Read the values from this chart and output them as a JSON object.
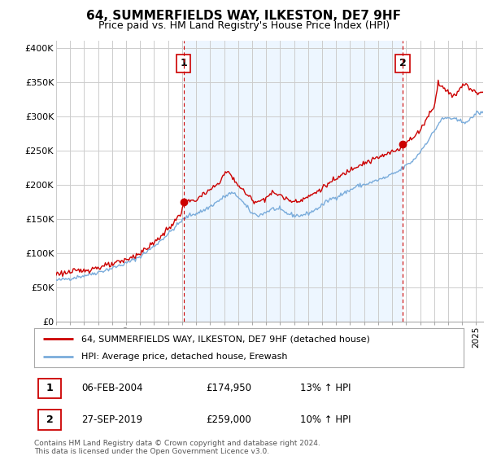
{
  "title": "64, SUMMERFIELDS WAY, ILKESTON, DE7 9HF",
  "subtitle": "Price paid vs. HM Land Registry's House Price Index (HPI)",
  "ylabel_ticks": [
    0,
    50000,
    100000,
    150000,
    200000,
    250000,
    300000,
    350000,
    400000
  ],
  "ylabel_labels": [
    "£0",
    "£50K",
    "£100K",
    "£150K",
    "£200K",
    "£250K",
    "£300K",
    "£350K",
    "£400K"
  ],
  "xlim_start": 1995.0,
  "xlim_end": 2025.5,
  "ylim": [
    0,
    410000
  ],
  "legend_line1": "64, SUMMERFIELDS WAY, ILKESTON, DE7 9HF (detached house)",
  "legend_line2": "HPI: Average price, detached house, Erewash",
  "sale1_label": "1",
  "sale1_date": "06-FEB-2004",
  "sale1_price": "£174,950",
  "sale1_hpi": "13% ↑ HPI",
  "sale1_year": 2004.1,
  "sale1_value": 174950,
  "sale2_label": "2",
  "sale2_date": "27-SEP-2019",
  "sale2_price": "£259,000",
  "sale2_hpi": "10% ↑ HPI",
  "sale2_year": 2019.75,
  "sale2_value": 259000,
  "red_color": "#cc0000",
  "blue_color": "#7aacdb",
  "background_color": "#ffffff",
  "grid_color": "#cccccc",
  "footnote": "Contains HM Land Registry data © Crown copyright and database right 2024.\nThis data is licensed under the Open Government Licence v3.0."
}
